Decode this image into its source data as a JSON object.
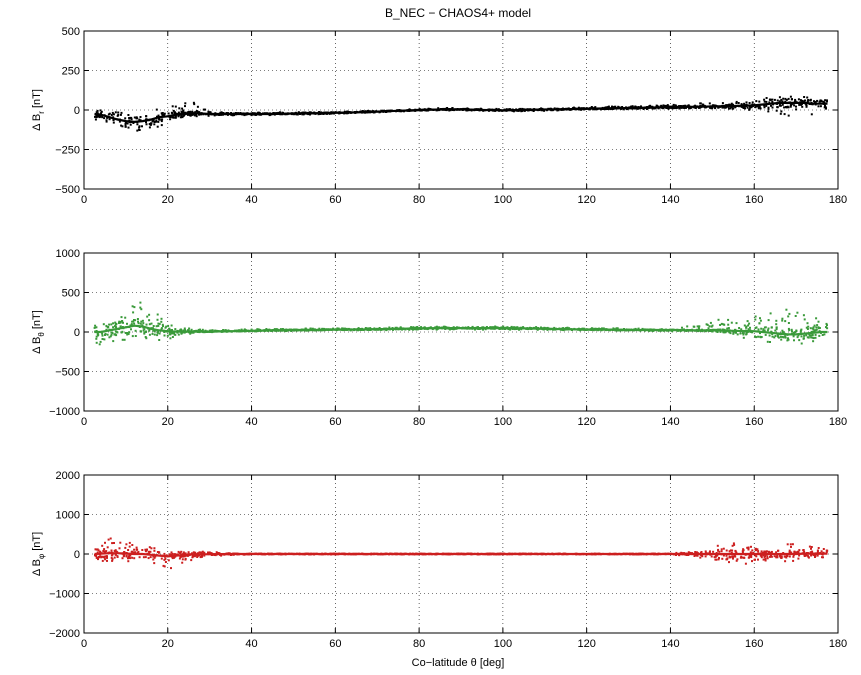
{
  "figure": {
    "title": "B_NEC − CHAOS4+ model",
    "xlabel": "Co−latitude θ [deg]"
  },
  "chart_data": [
    {
      "type": "scatter",
      "xlabel": "",
      "ylabel_main": "Δ B",
      "ylabel_sub": "r",
      "ylabel_unit": "[nT]",
      "xlim": [
        0,
        180
      ],
      "ylim": [
        -500,
        500
      ],
      "x_ticks": [
        0,
        20,
        40,
        60,
        80,
        100,
        120,
        140,
        160,
        180
      ],
      "y_ticks": [
        -500,
        -250,
        0,
        250,
        500
      ],
      "grid": true,
      "color": "#000000",
      "series": [
        {
          "x": [
            2.5,
            4,
            6,
            8,
            10,
            12,
            14,
            16,
            18,
            20,
            22,
            24,
            26,
            28,
            30,
            35,
            40,
            45,
            50,
            55,
            60,
            65,
            70,
            75,
            80,
            85,
            90,
            95,
            100,
            105,
            110,
            115,
            120,
            125,
            130,
            135,
            140,
            145,
            150,
            155,
            160,
            162,
            164,
            166,
            168,
            170,
            172,
            174,
            176,
            177.5
          ],
          "y_mean": [
            -25,
            -30,
            -45,
            -60,
            -70,
            -75,
            -70,
            -60,
            -45,
            -40,
            -30,
            -25,
            -20,
            -22,
            -25,
            -25,
            -25,
            -25,
            -22,
            -20,
            -18,
            -15,
            -10,
            -5,
            0,
            3,
            4,
            0,
            -2,
            0,
            3,
            5,
            8,
            10,
            12,
            15,
            18,
            20,
            22,
            25,
            30,
            35,
            40,
            45,
            45,
            45,
            45,
            40,
            40,
            40
          ],
          "y_min": [
            -60,
            -70,
            -95,
            -110,
            -120,
            -130,
            -135,
            -140,
            -110,
            -80,
            -60,
            -50,
            -45,
            -40,
            -38,
            -36,
            -35,
            -33,
            -30,
            -28,
            -25,
            -20,
            -15,
            -10,
            -5,
            -3,
            -5,
            -8,
            -10,
            -8,
            -5,
            -3,
            0,
            2,
            4,
            6,
            8,
            8,
            8,
            5,
            -5,
            -15,
            -20,
            -30,
            -40,
            -45,
            -40,
            -30,
            -25,
            -20
          ],
          "y_max": [
            10,
            10,
            0,
            -10,
            -20,
            -25,
            -15,
            -10,
            10,
            20,
            30,
            45,
            50,
            20,
            -10,
            -14,
            -15,
            -15,
            -14,
            -12,
            -10,
            -8,
            -4,
            2,
            8,
            12,
            15,
            10,
            6,
            8,
            12,
            16,
            20,
            22,
            25,
            28,
            32,
            40,
            45,
            50,
            65,
            75,
            85,
            90,
            95,
            90,
            85,
            80,
            80,
            80
          ]
        }
      ]
    },
    {
      "type": "scatter",
      "xlabel": "",
      "ylabel_main": "Δ B",
      "ylabel_sub": "θ",
      "ylabel_unit": "[nT]",
      "xlim": [
        0,
        180
      ],
      "ylim": [
        -1000,
        1000
      ],
      "x_ticks": [
        0,
        20,
        40,
        60,
        80,
        100,
        120,
        140,
        160,
        180
      ],
      "y_ticks": [
        -1000,
        -500,
        0,
        500,
        1000
      ],
      "grid": true,
      "color": "#3a9a3a",
      "series": [
        {
          "x": [
            2.5,
            4,
            6,
            8,
            10,
            12,
            14,
            16,
            18,
            20,
            22,
            24,
            26,
            28,
            30,
            35,
            40,
            45,
            50,
            55,
            60,
            65,
            70,
            75,
            80,
            85,
            90,
            95,
            100,
            105,
            110,
            115,
            120,
            125,
            130,
            135,
            140,
            145,
            150,
            155,
            160,
            162,
            164,
            166,
            168,
            170,
            172,
            174,
            176,
            177.5
          ],
          "y_mean": [
            0,
            0,
            20,
            40,
            60,
            80,
            70,
            40,
            20,
            10,
            5,
            5,
            5,
            5,
            5,
            10,
            15,
            20,
            25,
            25,
            30,
            30,
            35,
            40,
            45,
            50,
            50,
            50,
            50,
            45,
            40,
            35,
            30,
            30,
            25,
            25,
            25,
            20,
            20,
            15,
            10,
            0,
            -10,
            -20,
            -30,
            -30,
            -20,
            -10,
            0,
            0
          ],
          "y_min": [
            -400,
            -200,
            -150,
            -100,
            -100,
            -80,
            -70,
            -100,
            -120,
            -100,
            -60,
            -30,
            -20,
            -10,
            -5,
            0,
            5,
            10,
            12,
            15,
            18,
            20,
            22,
            25,
            28,
            30,
            30,
            30,
            30,
            28,
            25,
            22,
            20,
            15,
            12,
            10,
            8,
            5,
            0,
            -50,
            -100,
            -120,
            -130,
            -150,
            -160,
            -170,
            -150,
            -130,
            -120,
            -100
          ],
          "y_max": [
            200,
            200,
            220,
            250,
            300,
            350,
            380,
            300,
            220,
            150,
            100,
            60,
            40,
            30,
            25,
            30,
            35,
            40,
            42,
            45,
            48,
            50,
            55,
            60,
            65,
            70,
            70,
            70,
            70,
            65,
            60,
            55,
            50,
            48,
            45,
            42,
            40,
            80,
            150,
            180,
            200,
            220,
            250,
            280,
            300,
            270,
            220,
            200,
            150,
            130
          ]
        }
      ]
    },
    {
      "type": "scatter",
      "xlabel": "",
      "ylabel_main": "Δ B",
      "ylabel_sub": "φ",
      "ylabel_unit": "[nT]",
      "xlim": [
        0,
        180
      ],
      "ylim": [
        -2000,
        2000
      ],
      "x_ticks": [
        0,
        20,
        40,
        60,
        80,
        100,
        120,
        140,
        160,
        180
      ],
      "y_ticks": [
        -2000,
        -1000,
        0,
        1000,
        2000
      ],
      "grid": true,
      "color": "#cc1f1f",
      "series": [
        {
          "x": [
            2.5,
            4,
            6,
            8,
            10,
            12,
            14,
            16,
            18,
            20,
            22,
            24,
            26,
            28,
            30,
            35,
            40,
            45,
            50,
            55,
            60,
            65,
            70,
            75,
            80,
            85,
            90,
            95,
            100,
            105,
            110,
            115,
            120,
            125,
            130,
            135,
            140,
            145,
            150,
            155,
            160,
            162,
            164,
            166,
            168,
            170,
            172,
            174,
            176,
            177.5
          ],
          "y_mean": [
            0,
            10,
            20,
            20,
            10,
            0,
            0,
            -20,
            -40,
            -60,
            -40,
            -20,
            -10,
            -10,
            -5,
            0,
            0,
            0,
            0,
            0,
            0,
            0,
            0,
            0,
            0,
            0,
            0,
            0,
            0,
            0,
            0,
            0,
            0,
            0,
            0,
            0,
            0,
            0,
            0,
            0,
            0,
            0,
            0,
            0,
            0,
            0,
            10,
            10,
            10,
            10
          ],
          "y_min": [
            -150,
            -180,
            -200,
            -220,
            -200,
            -180,
            -200,
            -250,
            -350,
            -400,
            -300,
            -200,
            -150,
            -100,
            -60,
            -30,
            -15,
            -12,
            -12,
            -12,
            -12,
            -12,
            -12,
            -12,
            -12,
            -12,
            -12,
            -12,
            -12,
            -12,
            -12,
            -12,
            -12,
            -12,
            -12,
            -15,
            -20,
            -50,
            -150,
            -300,
            -250,
            -200,
            -150,
            -150,
            -200,
            -180,
            -150,
            -100,
            -100,
            -80
          ],
          "y_max": [
            150,
            200,
            400,
            450,
            350,
            300,
            500,
            250,
            150,
            100,
            80,
            80,
            100,
            80,
            60,
            30,
            15,
            12,
            12,
            12,
            12,
            12,
            12,
            12,
            12,
            12,
            12,
            12,
            12,
            12,
            12,
            12,
            12,
            12,
            12,
            15,
            20,
            60,
            200,
            350,
            250,
            150,
            120,
            150,
            250,
            350,
            250,
            180,
            150,
            120
          ]
        }
      ]
    }
  ]
}
